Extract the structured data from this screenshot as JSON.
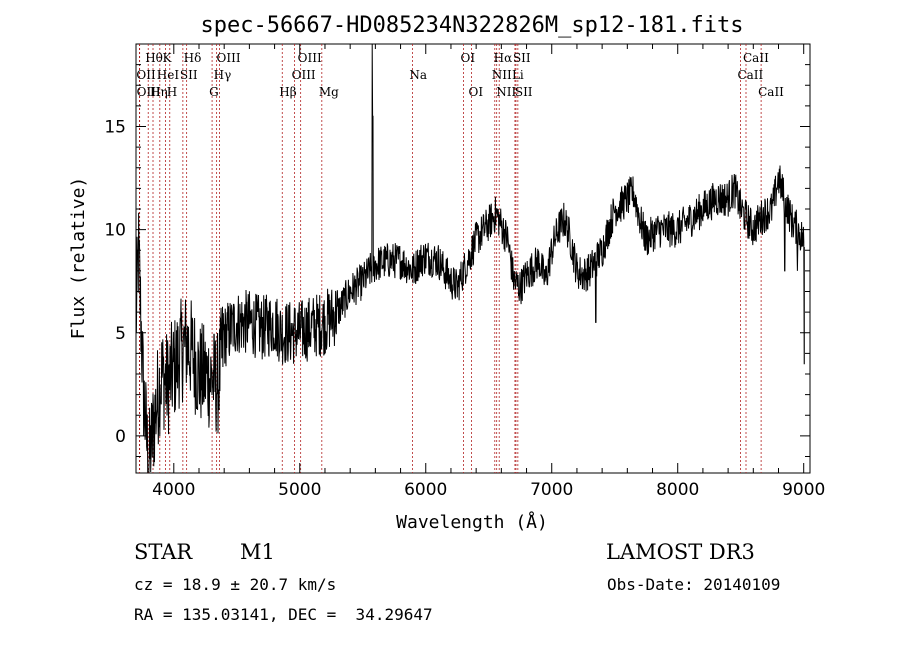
{
  "chart_data": {
    "type": "line",
    "title": "spec-56667-HD085234N322826M_sp12-181.fits",
    "xlabel": "Wavelength (Å)",
    "ylabel": "Flux (relative)",
    "xlim": [
      3700,
      9050
    ],
    "ylim": [
      -1.8,
      19
    ],
    "x_ticks": [
      4000,
      5000,
      6000,
      7000,
      8000,
      9000
    ],
    "y_ticks": [
      0,
      5,
      10,
      15
    ],
    "spectrum_anchors": [
      [
        3700,
        5.5
      ],
      [
        3720,
        9.0
      ],
      [
        3760,
        2.0
      ],
      [
        3800,
        -1.5
      ],
      [
        3850,
        1.0
      ],
      [
        3900,
        3.0
      ],
      [
        3950,
        2.5
      ],
      [
        4000,
        3.2
      ],
      [
        4050,
        4.0
      ],
      [
        4100,
        4.5
      ],
      [
        4150,
        4.0
      ],
      [
        4200,
        3.0
      ],
      [
        4300,
        2.8
      ],
      [
        4350,
        2.5
      ],
      [
        4400,
        4.8
      ],
      [
        4500,
        5.5
      ],
      [
        4600,
        5.5
      ],
      [
        4700,
        5.2
      ],
      [
        4800,
        5.5
      ],
      [
        4850,
        5.0
      ],
      [
        4900,
        5.0
      ],
      [
        5000,
        5.0
      ],
      [
        5100,
        5.3
      ],
      [
        5200,
        5.5
      ],
      [
        5300,
        6.0
      ],
      [
        5400,
        7.0
      ],
      [
        5500,
        7.5
      ],
      [
        5560,
        8.0
      ],
      [
        5600,
        8.3
      ],
      [
        5700,
        8.5
      ],
      [
        5800,
        8.5
      ],
      [
        5900,
        8.0
      ],
      [
        5950,
        8.5
      ],
      [
        6000,
        8.7
      ],
      [
        6100,
        8.5
      ],
      [
        6200,
        7.5
      ],
      [
        6250,
        7.2
      ],
      [
        6300,
        8.0
      ],
      [
        6400,
        9.5
      ],
      [
        6500,
        10.3
      ],
      [
        6560,
        10.8
      ],
      [
        6600,
        10.2
      ],
      [
        6650,
        9.5
      ],
      [
        6700,
        7.5
      ],
      [
        6750,
        7.2
      ],
      [
        6800,
        7.8
      ],
      [
        6900,
        8.5
      ],
      [
        6950,
        7.5
      ],
      [
        7000,
        9.0
      ],
      [
        7050,
        10.0
      ],
      [
        7100,
        10.5
      ],
      [
        7150,
        9.5
      ],
      [
        7200,
        8.0
      ],
      [
        7250,
        7.8
      ],
      [
        7300,
        8.0
      ],
      [
        7350,
        8.5
      ],
      [
        7400,
        9.0
      ],
      [
        7450,
        10.0
      ],
      [
        7500,
        11.0
      ],
      [
        7550,
        11.2
      ],
      [
        7600,
        11.5
      ],
      [
        7650,
        11.8
      ],
      [
        7700,
        10.5
      ],
      [
        7750,
        9.5
      ],
      [
        7800,
        9.8
      ],
      [
        7850,
        10.0
      ],
      [
        7900,
        10.0
      ],
      [
        8000,
        10.0
      ],
      [
        8100,
        10.5
      ],
      [
        8200,
        11.0
      ],
      [
        8300,
        11.5
      ],
      [
        8400,
        11.5
      ],
      [
        8450,
        12.0
      ],
      [
        8500,
        11.0
      ],
      [
        8550,
        10.5
      ],
      [
        8600,
        10.0
      ],
      [
        8650,
        10.5
      ],
      [
        8700,
        10.8
      ],
      [
        8750,
        11.0
      ],
      [
        8800,
        12.5
      ],
      [
        8850,
        11.5
      ],
      [
        8900,
        10.5
      ],
      [
        8950,
        10.0
      ],
      [
        9000,
        9.5
      ]
    ],
    "spikes": [
      [
        5577,
        19.0
      ],
      [
        5580,
        15.5
      ],
      [
        7350,
        5.5
      ],
      [
        8850,
        8.0
      ],
      [
        8950,
        8.0
      ],
      [
        9005,
        3.5
      ]
    ],
    "spectral_lines": [
      {
        "label": "Hθ",
        "wavelength": 3797,
        "row": 1
      },
      {
        "label": "OII",
        "wavelength": 3727,
        "row": 2
      },
      {
        "label": "OIII",
        "wavelength": 3729,
        "row": 3
      },
      {
        "label": "HeI",
        "wavelength": 3889,
        "row": 2
      },
      {
        "label": "Hη",
        "wavelength": 3835,
        "row": 3
      },
      {
        "label": "K",
        "wavelength": 3934,
        "row": 1
      },
      {
        "label": "SII",
        "wavelength": 4072,
        "row": 2
      },
      {
        "label": "H",
        "wavelength": 3968,
        "row": 3
      },
      {
        "label": "Hδ",
        "wavelength": 4102,
        "row": 1
      },
      {
        "label": "OIII",
        "wavelength": 4363,
        "row": 1
      },
      {
        "label": "Hγ",
        "wavelength": 4340,
        "row": 2
      },
      {
        "label": "G",
        "wavelength": 4304,
        "row": 3
      },
      {
        "label": "OIII",
        "wavelength": 5007,
        "row": 1
      },
      {
        "label": "OIII",
        "wavelength": 4959,
        "row": 2
      },
      {
        "label": "Hβ",
        "wavelength": 4861,
        "row": 3
      },
      {
        "label": "Mg",
        "wavelength": 5175,
        "row": 3
      },
      {
        "label": "Na",
        "wavelength": 5894,
        "row": 2
      },
      {
        "label": "OI",
        "wavelength": 6300,
        "row": 1
      },
      {
        "label": "OI",
        "wavelength": 6363,
        "row": 3
      },
      {
        "label": "Hα",
        "wavelength": 6563,
        "row": 1
      },
      {
        "label": "SII",
        "wavelength": 6716,
        "row": 1
      },
      {
        "label": "NII",
        "wavelength": 6548,
        "row": 2
      },
      {
        "label": "Li",
        "wavelength": 6708,
        "row": 2
      },
      {
        "label": "NII",
        "wavelength": 6583,
        "row": 3
      },
      {
        "label": "SII",
        "wavelength": 6731,
        "row": 3
      },
      {
        "label": "CaII",
        "wavelength": 8542,
        "row": 1
      },
      {
        "label": "CaII",
        "wavelength": 8498,
        "row": 2
      },
      {
        "label": "CaII",
        "wavelength": 8662,
        "row": 3
      }
    ]
  },
  "info": {
    "object_class": "STAR",
    "subclass": "M1",
    "survey": "LAMOST DR3",
    "cz": "cz = 18.9 ± 20.7 km/s",
    "obs_date": "Obs-Date: 20140109",
    "coords": "RA = 135.03141, DEC =  34.29647"
  }
}
